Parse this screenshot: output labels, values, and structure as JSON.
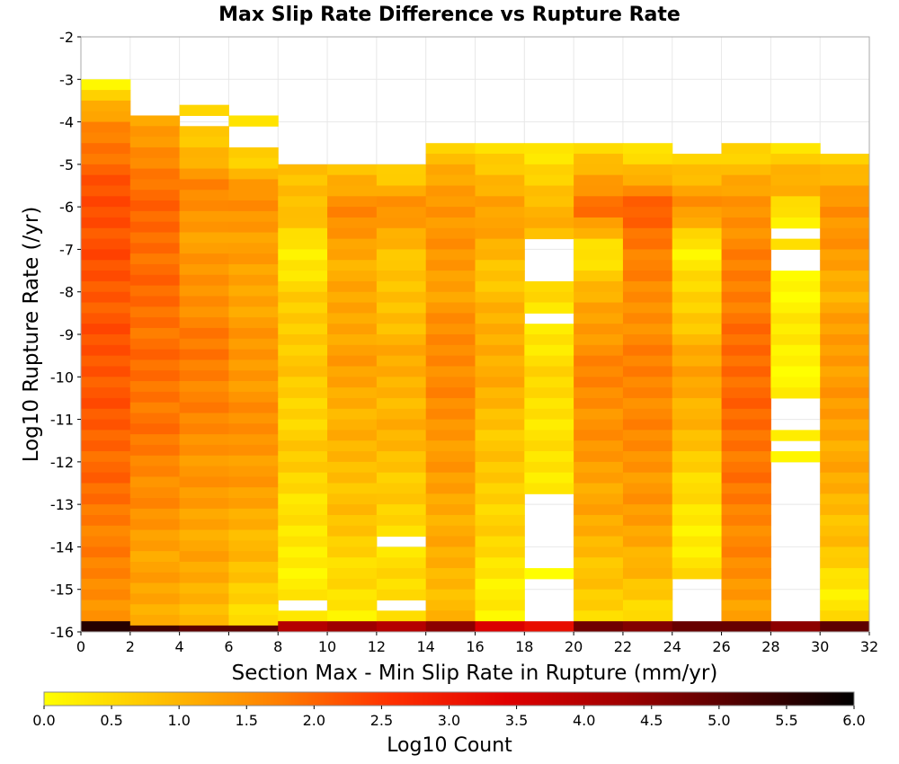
{
  "chart_data": {
    "type": "heatmap",
    "title": "Max Slip Rate Difference vs Rupture Rate",
    "xlabel": "Section Max - Min Slip Rate in Rupture (mm/yr)",
    "ylabel": "Log10 Rupture Rate (/yr)",
    "xlim": [
      0,
      32
    ],
    "ylim": [
      -16,
      -2
    ],
    "x_ticks": [
      "0",
      "2",
      "4",
      "6",
      "8",
      "10",
      "12",
      "14",
      "16",
      "18",
      "20",
      "22",
      "24",
      "26",
      "28",
      "30",
      "32"
    ],
    "y_ticks": [
      "-2",
      "-3",
      "-4",
      "-5",
      "-6",
      "-7",
      "-8",
      "-9",
      "-10",
      "-11",
      "-12",
      "-13",
      "-14",
      "-15",
      "-16"
    ],
    "x_bin_edges": [
      0,
      2,
      4,
      6,
      8,
      10,
      12,
      14,
      16,
      18,
      20,
      22,
      24,
      26,
      28,
      30,
      32
    ],
    "y_bin_size": 0.25,
    "grid": true,
    "colorbar": {
      "label": "Log10 Count",
      "min": 0,
      "max": 6,
      "ticks": [
        "0.0",
        "0.5",
        "1.0",
        "1.5",
        "2.0",
        "2.5",
        "3.0",
        "3.5",
        "4.0",
        "4.5",
        "5.0",
        "5.5",
        "6.0"
      ],
      "colors": [
        "#ffff00",
        "#ffc000",
        "#ff8000",
        "#ff3000",
        "#e00000",
        "#a00000",
        "#500000",
        "#000000"
      ],
      "placement": "bottom"
    },
    "columns": [
      {
        "x": [
          0,
          2
        ],
        "top": -3.0,
        "gaps": [],
        "profile": [
          [
            -3.0,
            0.1
          ],
          [
            -3.5,
            0.8
          ],
          [
            -4.2,
            1.7
          ],
          [
            -5.0,
            2.0
          ],
          [
            -6.0,
            2.3
          ],
          [
            -8.0,
            2.15
          ],
          [
            -10.0,
            2.2
          ],
          [
            -12.0,
            2.0
          ],
          [
            -14.0,
            1.7
          ],
          [
            -15.75,
            1.5
          ]
        ],
        "bottom_value": 5.6
      },
      {
        "x": [
          2,
          4
        ],
        "top": -3.85,
        "gaps": [],
        "profile": [
          [
            -3.85,
            1.1
          ],
          [
            -4.5,
            1.4
          ],
          [
            -5.5,
            1.95
          ],
          [
            -7.0,
            1.95
          ],
          [
            -9.0,
            1.9
          ],
          [
            -11.0,
            1.85
          ],
          [
            -12.5,
            1.6
          ],
          [
            -14.0,
            1.3
          ],
          [
            -15.75,
            1.1
          ]
        ],
        "bottom_value": 5.3
      },
      {
        "x": [
          4,
          6
        ],
        "top": -3.6,
        "gaps": [
          [
            -3.9,
            -4.1
          ],
          [
            -4.35,
            -4.45
          ]
        ],
        "profile": [
          [
            -3.6,
            0.3
          ],
          [
            -4.6,
            0.9
          ],
          [
            -5.5,
            1.6
          ],
          [
            -7.0,
            1.3
          ],
          [
            -8.0,
            1.5
          ],
          [
            -9.5,
            1.8
          ],
          [
            -11.0,
            1.6
          ],
          [
            -13.0,
            1.3
          ],
          [
            -15.75,
            1.0
          ]
        ],
        "bottom_value": 5.0
      },
      {
        "x": [
          6,
          8
        ],
        "top": -3.85,
        "gaps": [
          [
            -4.1,
            -4.7
          ]
        ],
        "profile": [
          [
            -3.85,
            0.4
          ],
          [
            -4.9,
            0.7
          ],
          [
            -5.8,
            1.55
          ],
          [
            -7.5,
            1.2
          ],
          [
            -9.5,
            1.4
          ],
          [
            -11.5,
            1.5
          ],
          [
            -13.5,
            1.1
          ],
          [
            -15.75,
            0.5
          ]
        ],
        "bottom_value": 5.0
      },
      {
        "x": [
          8,
          10
        ],
        "top": -5.0,
        "gaps": [
          [
            -15.25,
            -15.45
          ]
        ],
        "profile": [
          [
            -5.0,
            0.8
          ],
          [
            -6.0,
            1.0
          ],
          [
            -7.0,
            0.2
          ],
          [
            -8.0,
            0.6
          ],
          [
            -9.5,
            0.8
          ],
          [
            -10.5,
            0.6
          ],
          [
            -12.0,
            0.7
          ],
          [
            -13.5,
            0.3
          ],
          [
            -15.75,
            0.2
          ]
        ],
        "bottom_value": 4.0
      },
      {
        "x": [
          10,
          12
        ],
        "top": -5.0,
        "gaps": [],
        "profile": [
          [
            -5.0,
            0.8
          ],
          [
            -6.0,
            1.6
          ],
          [
            -7.5,
            1.1
          ],
          [
            -9.5,
            1.3
          ],
          [
            -11.5,
            1.0
          ],
          [
            -13.5,
            0.8
          ],
          [
            -15.75,
            0.2
          ]
        ],
        "bottom_value": 4.3
      },
      {
        "x": [
          12,
          14
        ],
        "top": -5.0,
        "gaps": [
          [
            -14.0,
            -13.8
          ],
          [
            -15.5,
            -15.3
          ]
        ],
        "profile": [
          [
            -5.0,
            0.5
          ],
          [
            -6.0,
            1.5
          ],
          [
            -7.5,
            0.7
          ],
          [
            -9.5,
            1.1
          ],
          [
            -11.5,
            1.0
          ],
          [
            -13.5,
            0.5
          ],
          [
            -15.75,
            0.4
          ]
        ],
        "bottom_value": 4.0
      },
      {
        "x": [
          14,
          16
        ],
        "top": -4.5,
        "gaps": [],
        "profile": [
          [
            -4.5,
            0.7
          ],
          [
            -6.0,
            1.5
          ],
          [
            -8.0,
            1.3
          ],
          [
            -9.5,
            1.65
          ],
          [
            -11.0,
            1.5
          ],
          [
            -13.0,
            1.2
          ],
          [
            -15.75,
            0.9
          ]
        ],
        "bottom_value": 4.5
      },
      {
        "x": [
          16,
          18
        ],
        "top": -4.5,
        "gaps": [],
        "profile": [
          [
            -4.5,
            0.3
          ],
          [
            -6.0,
            1.4
          ],
          [
            -7.5,
            0.8
          ],
          [
            -9.5,
            1.2
          ],
          [
            -11.5,
            0.8
          ],
          [
            -13.5,
            0.6
          ],
          [
            -15.75,
            0.1
          ]
        ],
        "bottom_value": 3.5
      },
      {
        "x": [
          18,
          20
        ],
        "top": -4.5,
        "gaps": [
          [
            -6.8,
            -7.8
          ],
          [
            -8.6,
            -8.8
          ],
          [
            -11.9,
            -12.1
          ],
          [
            -12.8,
            -14.4
          ],
          [
            -14.7,
            -15.9
          ]
        ],
        "profile": [
          [
            -4.5,
            0.1
          ],
          [
            -6.0,
            1.1
          ],
          [
            -8.5,
            0.3
          ],
          [
            -10.0,
            0.5
          ],
          [
            -12.5,
            0.3
          ],
          [
            -14.5,
            0.2
          ]
        ],
        "bottom_value": 3.2
      },
      {
        "x": [
          20,
          22
        ],
        "top": -4.5,
        "gaps": [],
        "profile": [
          [
            -4.5,
            0.4
          ],
          [
            -6.0,
            2.0
          ],
          [
            -7.0,
            0.3
          ],
          [
            -8.5,
            1.3
          ],
          [
            -10.0,
            1.65
          ],
          [
            -12.0,
            1.35
          ],
          [
            -14.0,
            1.0
          ],
          [
            -15.75,
            0.5
          ]
        ],
        "bottom_value": 4.8
      },
      {
        "x": [
          22,
          24
        ],
        "top": -4.5,
        "gaps": [],
        "profile": [
          [
            -4.5,
            0.1
          ],
          [
            -6.0,
            2.1
          ],
          [
            -8.0,
            1.5
          ],
          [
            -10.0,
            1.7
          ],
          [
            -12.0,
            1.5
          ],
          [
            -14.0,
            1.2
          ],
          [
            -15.75,
            0.4
          ]
        ],
        "bottom_value": 4.6
      },
      {
        "x": [
          24,
          26
        ],
        "top": -4.75,
        "gaps": [
          [
            -14.7,
            -15.9
          ]
        ],
        "profile": [
          [
            -4.75,
            0.6
          ],
          [
            -6.0,
            1.5
          ],
          [
            -7.0,
            0.2
          ],
          [
            -8.5,
            0.7
          ],
          [
            -10.0,
            1.3
          ],
          [
            -12.0,
            0.7
          ],
          [
            -13.5,
            0.2
          ],
          [
            -14.5,
            0.4
          ]
        ],
        "bottom_value": 4.9
      },
      {
        "x": [
          26,
          28
        ],
        "top": -4.5,
        "gaps": [],
        "profile": [
          [
            -4.5,
            0.5
          ],
          [
            -6.0,
            1.5
          ],
          [
            -8.0,
            1.75
          ],
          [
            -10.0,
            2.0
          ],
          [
            -12.0,
            1.85
          ],
          [
            -14.0,
            1.6
          ],
          [
            -15.75,
            1.3
          ]
        ],
        "bottom_value": 4.9
      },
      {
        "x": [
          28,
          30
        ],
        "top": -4.5,
        "gaps": [
          [
            -6.4,
            -6.65
          ],
          [
            -6.95,
            -7.55
          ],
          [
            -10.6,
            -11.2
          ],
          [
            -11.5,
            -11.8
          ],
          [
            -12.1,
            -15.9
          ]
        ],
        "profile": [
          [
            -4.5,
            0.4
          ],
          [
            -5.5,
            1.2
          ],
          [
            -6.0,
            0.4
          ],
          [
            -8.0,
            0.1
          ],
          [
            -9.0,
            0.3
          ],
          [
            -10.0,
            0.1
          ],
          [
            -11.5,
            0.2
          ],
          [
            -12.0,
            0.1
          ]
        ],
        "bottom_value": 4.5
      },
      {
        "x": [
          30,
          32
        ],
        "top": -4.75,
        "gaps": [],
        "profile": [
          [
            -4.75,
            0.5
          ],
          [
            -6.0,
            1.6
          ],
          [
            -8.0,
            1.1
          ],
          [
            -9.5,
            1.4
          ],
          [
            -11.0,
            1.3
          ],
          [
            -12.5,
            1.1
          ],
          [
            -14.0,
            0.8
          ],
          [
            -15.0,
            0.3
          ],
          [
            -15.75,
            0.4
          ]
        ],
        "bottom_value": 5.0
      }
    ]
  }
}
